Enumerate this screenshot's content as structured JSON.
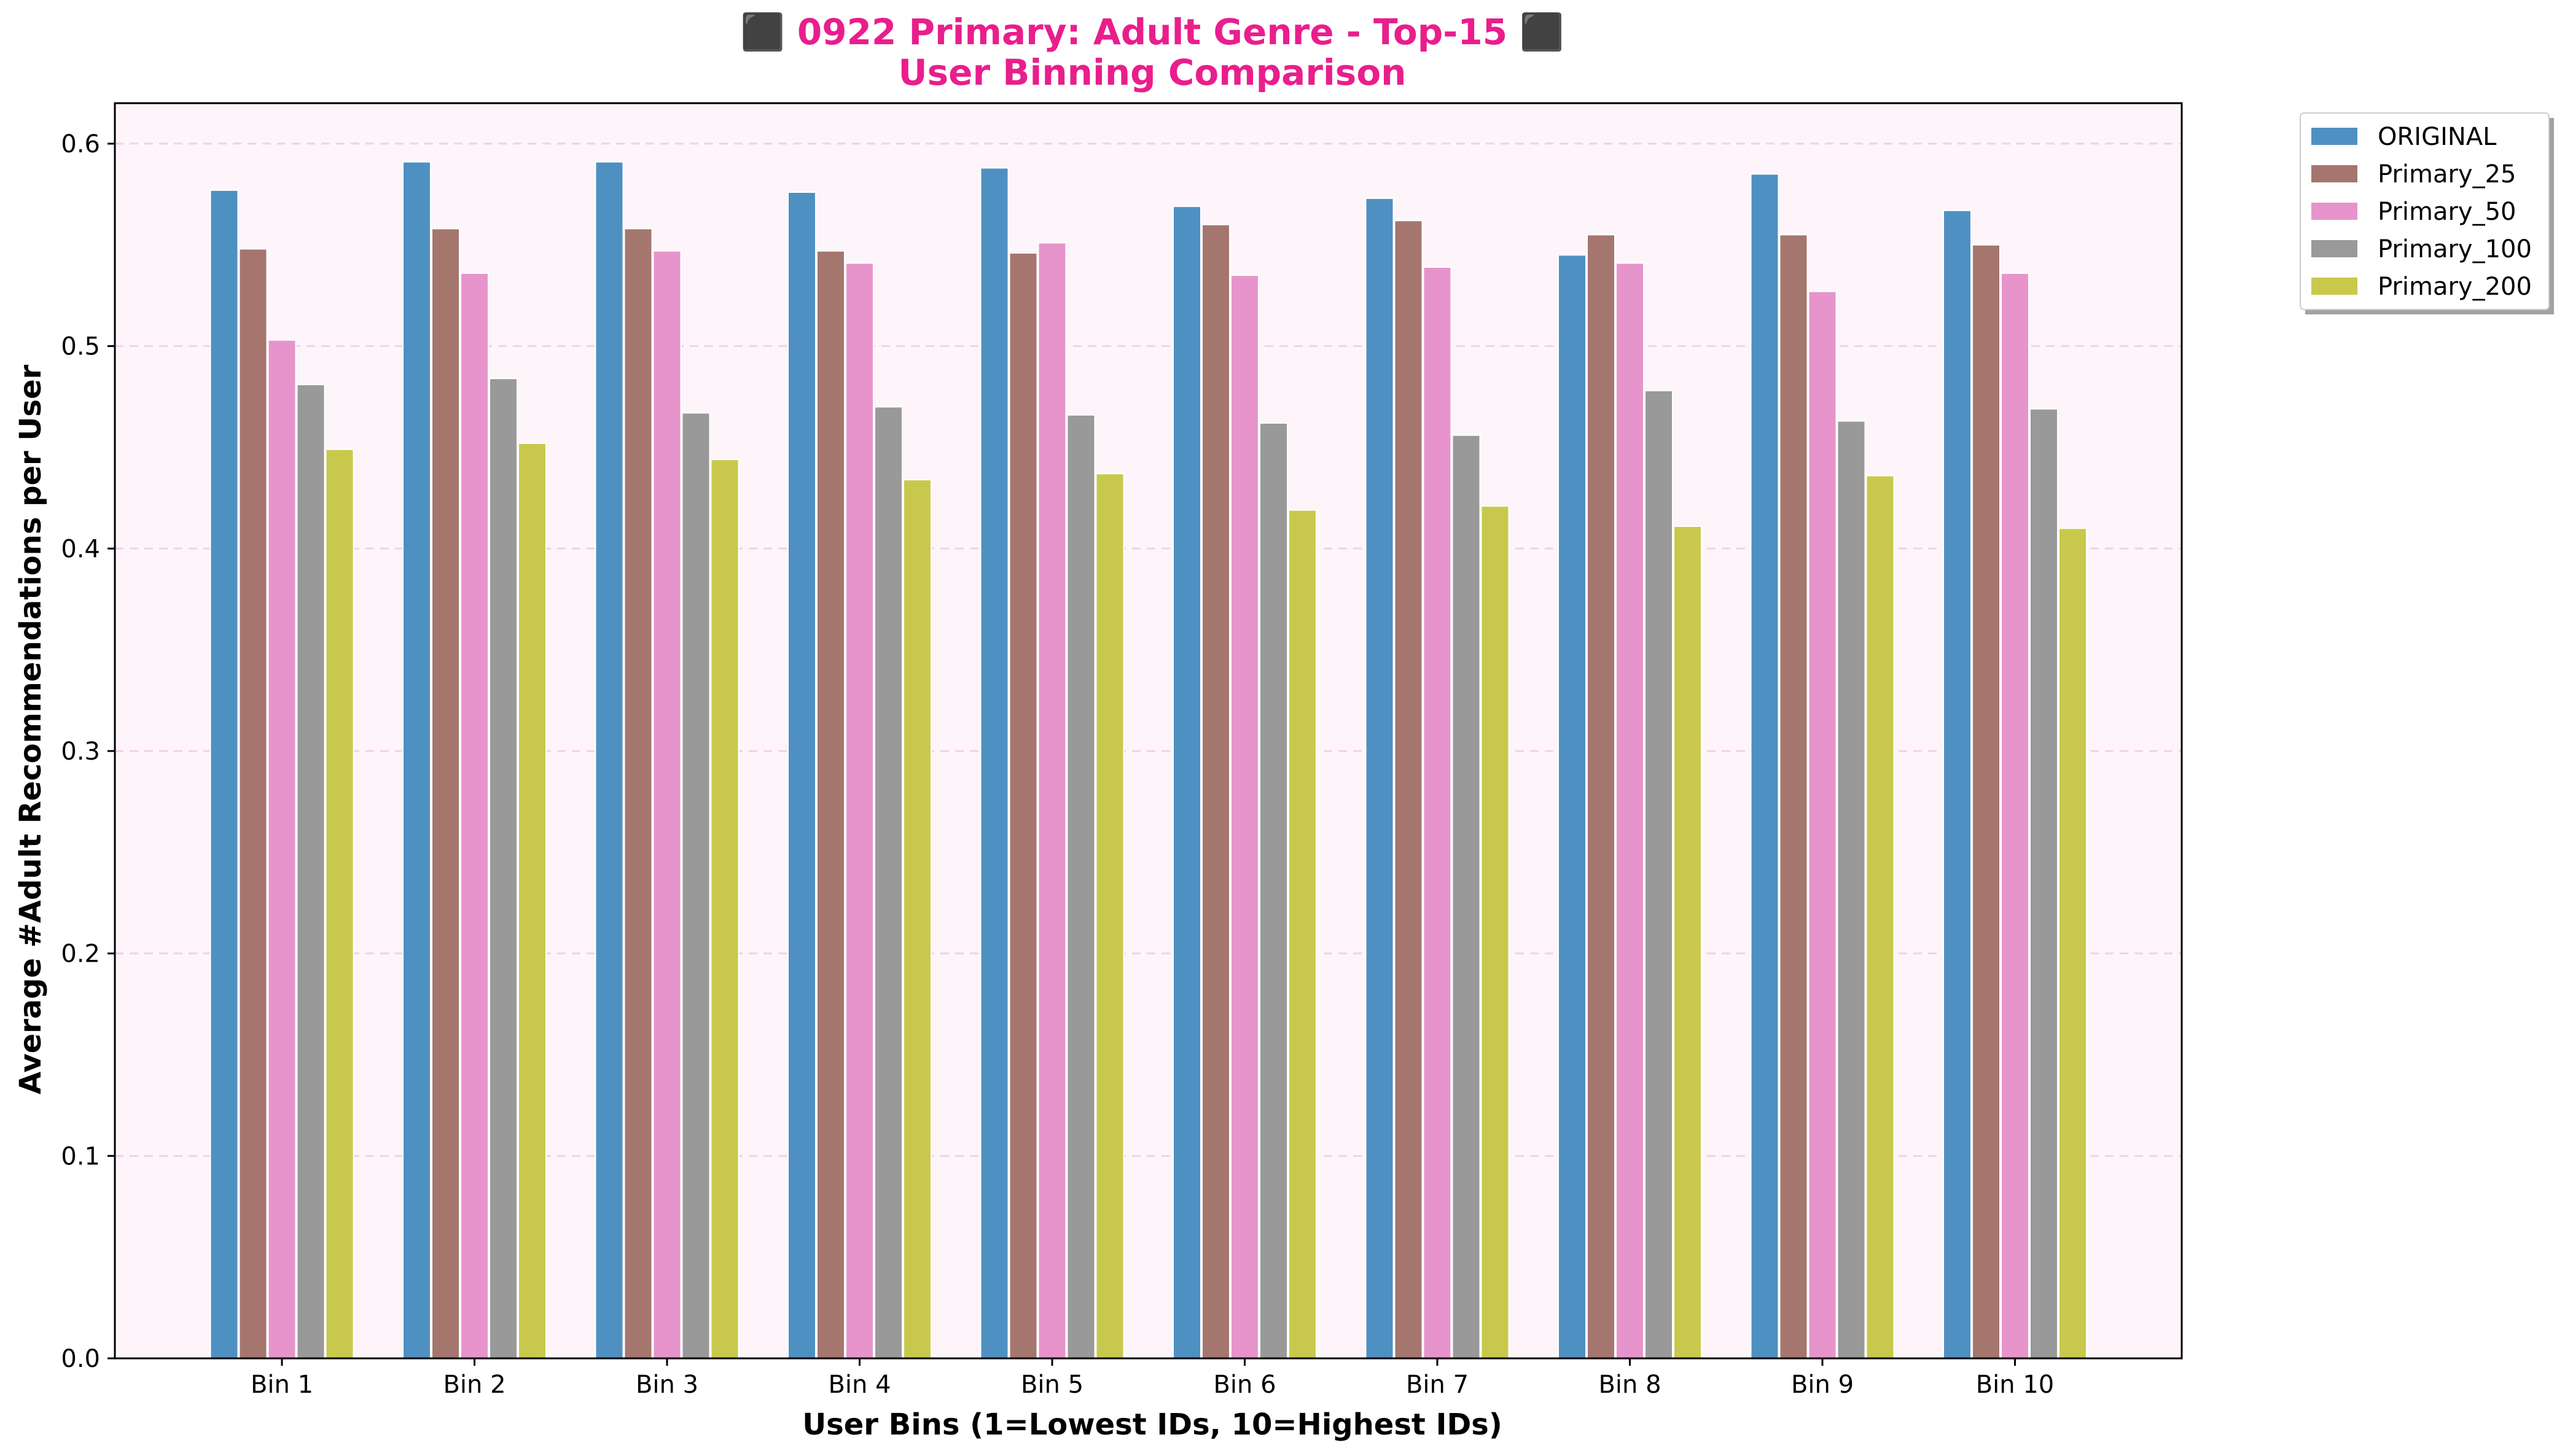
{
  "chart_data": {
    "type": "bar",
    "title_line1": "⬛ 0922 Primary: Adult Genre - Top-15 ⬛",
    "title_line2": "User Binning Comparison",
    "title_color": "#e91e8c",
    "xlabel": "User Bins (1=Lowest IDs, 10=Highest IDs)",
    "ylabel": "Average #Adult Recommendations per User",
    "ylim": [
      0,
      0.62
    ],
    "yticks": [
      "0.0",
      "0.1",
      "0.2",
      "0.3",
      "0.4",
      "0.5",
      "0.6"
    ],
    "ytick_values": [
      0.0,
      0.1,
      0.2,
      0.3,
      0.4,
      0.5,
      0.6
    ],
    "grid": true,
    "plot_background": "#fdf5fa",
    "grid_color": "#f5d0e4",
    "legend_position": "outside-top-right",
    "categories": [
      "Bin 1",
      "Bin 2",
      "Bin 3",
      "Bin 4",
      "Bin 5",
      "Bin 6",
      "Bin 7",
      "Bin 8",
      "Bin 9",
      "Bin 10"
    ],
    "series": [
      {
        "name": "ORIGINAL",
        "color": "#4f90c2",
        "values": [
          0.577,
          0.591,
          0.591,
          0.576,
          0.588,
          0.569,
          0.573,
          0.545,
          0.585,
          0.567
        ]
      },
      {
        "name": "Primary_25",
        "color": "#a4766e",
        "values": [
          0.548,
          0.558,
          0.558,
          0.547,
          0.546,
          0.56,
          0.562,
          0.555,
          0.555,
          0.55
        ]
      },
      {
        "name": "Primary_50",
        "color": "#e794cc",
        "values": [
          0.503,
          0.536,
          0.547,
          0.541,
          0.551,
          0.535,
          0.539,
          0.541,
          0.527,
          0.536
        ]
      },
      {
        "name": "Primary_100",
        "color": "#999999",
        "values": [
          0.481,
          0.484,
          0.467,
          0.47,
          0.466,
          0.462,
          0.456,
          0.478,
          0.463,
          0.469
        ]
      },
      {
        "name": "Primary_200",
        "color": "#c8c94c",
        "values": [
          0.449,
          0.452,
          0.444,
          0.434,
          0.437,
          0.419,
          0.421,
          0.411,
          0.436,
          0.41
        ]
      }
    ]
  }
}
